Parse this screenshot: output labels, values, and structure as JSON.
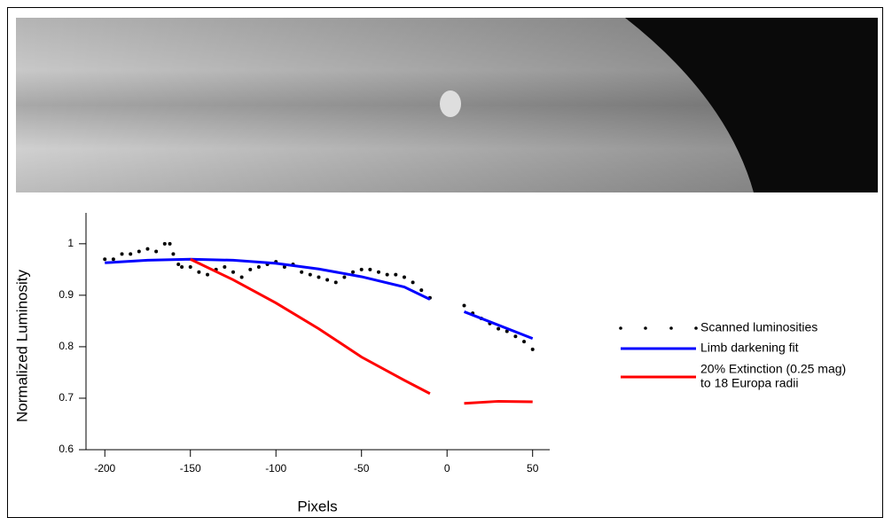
{
  "chart_data": {
    "type": "scatter-line",
    "x_label": "Pixels",
    "y_label": "Normalized Luminosity",
    "xlim": [
      -211,
      60
    ],
    "ylim": [
      0.6,
      1.06
    ],
    "xticks": [
      -200,
      -150,
      -100,
      -50,
      0,
      50
    ],
    "yticks": [
      0.6,
      0.7,
      0.8,
      0.9,
      1
    ],
    "series": [
      {
        "name": [
          "Scanned luminosities"
        ],
        "kind": "points",
        "color": "#000000",
        "x": [
          -200,
          -195,
          -190,
          -185,
          -180,
          -175,
          -170,
          -165,
          -162,
          -160,
          -157,
          -155,
          -150,
          -145,
          -140,
          -135,
          -130,
          -125,
          -120,
          -115,
          -110,
          -105,
          -100,
          -95,
          -90,
          -85,
          -80,
          -75,
          -70,
          -65,
          -60,
          -55,
          -50,
          -45,
          -40,
          -35,
          -30,
          -25,
          -20,
          -15,
          -10,
          10,
          15,
          20,
          25,
          30,
          35,
          40,
          45,
          50
        ],
        "values": [
          0.97,
          0.97,
          0.98,
          0.98,
          0.985,
          0.99,
          0.985,
          1.0,
          1.0,
          0.98,
          0.96,
          0.955,
          0.955,
          0.945,
          0.94,
          0.95,
          0.955,
          0.945,
          0.935,
          0.95,
          0.955,
          0.96,
          0.965,
          0.955,
          0.96,
          0.945,
          0.94,
          0.935,
          0.93,
          0.925,
          0.935,
          0.945,
          0.95,
          0.95,
          0.945,
          0.94,
          0.94,
          0.935,
          0.925,
          0.91,
          0.895,
          0.88,
          0.865,
          0.855,
          0.845,
          0.835,
          0.83,
          0.82,
          0.81,
          0.795
        ]
      },
      {
        "name": [
          "Limb darkening fit"
        ],
        "kind": "line",
        "color": "#0000ff",
        "x": [
          -200,
          -175,
          -150,
          -125,
          -100,
          -75,
          -50,
          -25,
          -10,
          0,
          10,
          50
        ],
        "values": [
          0.963,
          0.968,
          0.97,
          0.968,
          0.962,
          0.951,
          0.936,
          0.916,
          0.892,
          null,
          0.868,
          0.816
        ]
      },
      {
        "name": [
          "20% Extinction (0.25 mag)",
          "to 18 Europa radii"
        ],
        "kind": "line",
        "color": "#ff0000",
        "x": [
          -150,
          -125,
          -100,
          -75,
          -50,
          -25,
          -10,
          0,
          10,
          30,
          50
        ],
        "values": [
          0.97,
          0.93,
          0.885,
          0.835,
          0.78,
          0.735,
          0.709,
          null,
          0.69,
          0.694,
          0.693
        ]
      }
    ]
  }
}
